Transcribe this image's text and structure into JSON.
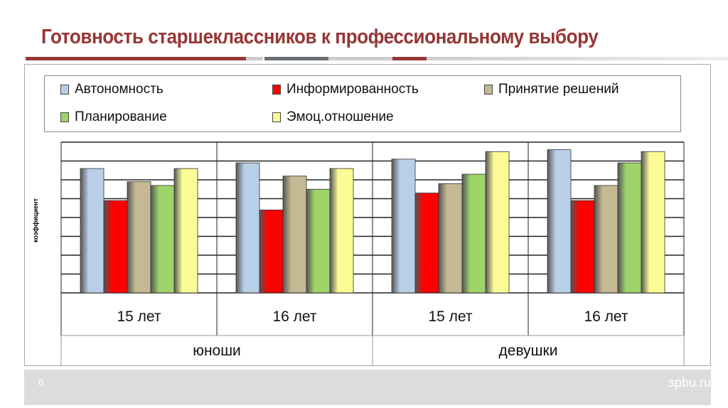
{
  "slide": {
    "title": "Готовность старшеклассников к профессиональному выбору",
    "page_number": "6",
    "site": "spbu.ru"
  },
  "chart_data": {
    "type": "bar",
    "title": "Готовность старшеклассников к профессиональному выбору",
    "ylabel": "коэффициент",
    "xlabel": "",
    "ylim": [
      0,
      8
    ],
    "grid": true,
    "legend_position": "top",
    "categories": [
      "15 лет",
      "16 лет",
      "15 лет",
      "16 лет"
    ],
    "groups": [
      {
        "label": "юноши",
        "span": 2
      },
      {
        "label": "девушки",
        "span": 2
      }
    ],
    "series": [
      {
        "name": "Автономность",
        "color": "#b9cfe8",
        "values": [
          6.6,
          6.9,
          7.1,
          7.6
        ]
      },
      {
        "name": "Информированность",
        "color": "#ff0000",
        "values": [
          4.9,
          4.4,
          5.3,
          4.9
        ]
      },
      {
        "name": "Принятие решений",
        "color": "#c4b992",
        "values": [
          5.9,
          6.2,
          5.8,
          5.7
        ]
      },
      {
        "name": "Планирование",
        "color": "#9ed36a",
        "values": [
          5.7,
          5.5,
          6.3,
          6.9
        ]
      },
      {
        "name": "Эмоц.отношение",
        "color": "#fafa96",
        "values": [
          6.6,
          6.6,
          7.5,
          7.5
        ]
      }
    ]
  }
}
